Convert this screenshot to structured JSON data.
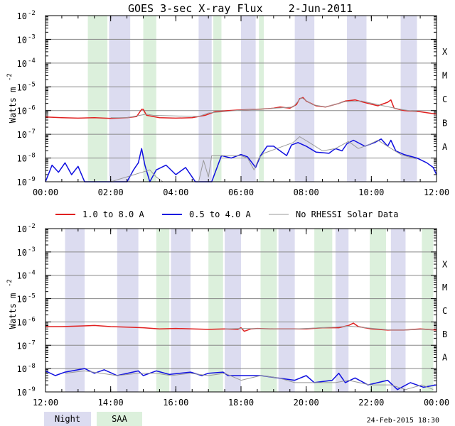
{
  "title": "GOES 3-sec X-ray Flux    2-Jun-2011",
  "ylabel": "Watts m",
  "ylabel_exp": "-2",
  "date_stamp": "24-Feb-2015 18:30",
  "colors": {
    "long": "#e02020",
    "short": "#1010e0",
    "nodata": "#999999",
    "night": "#dcdcf0",
    "saa": "#dcf0dc",
    "grid": "#888888"
  },
  "legend": {
    "items": [
      {
        "label": "1.0 to 8.0 A",
        "color": "#e02020"
      },
      {
        "label": "0.5 to 4.0 A",
        "color": "#1010e0"
      },
      {
        "label": "No RHESSI Solar Data",
        "color": "#999999"
      }
    ],
    "night_label": "Night",
    "saa_label": "SAA"
  },
  "chart_data": [
    {
      "type": "line",
      "panel": "top",
      "x_unit": "hours UT",
      "xlim": [
        0,
        12
      ],
      "x_tick_labels": [
        "00:00",
        "02:00",
        "04:00",
        "06:00",
        "08:00",
        "10:00",
        "12:00"
      ],
      "y_scale": "log",
      "ylim_exp": [
        -9,
        -2
      ],
      "y_tick_base": "10",
      "y_tick_exps": [
        "-9",
        "-8",
        "-7",
        "-6",
        "-5",
        "-4",
        "-3",
        "-2"
      ],
      "flare_classes": [
        {
          "label": "A",
          "exp": -8
        },
        {
          "label": "B",
          "exp": -7
        },
        {
          "label": "C",
          "exp": -6
        },
        {
          "label": "M",
          "exp": -5
        },
        {
          "label": "X",
          "exp": -4
        }
      ],
      "night": [
        [
          1.95,
          2.6
        ],
        [
          4.7,
          5.1
        ],
        [
          6.0,
          6.45
        ],
        [
          7.65,
          8.25
        ],
        [
          9.25,
          9.85
        ],
        [
          10.9,
          11.4
        ]
      ],
      "saa": [
        [
          1.3,
          1.9
        ],
        [
          3.0,
          3.4
        ],
        [
          5.15,
          5.4
        ],
        [
          6.55,
          6.7
        ]
      ],
      "series": [
        {
          "key": "long",
          "points": [
            [
              0.0,
              -6.27
            ],
            [
              0.5,
              -6.3
            ],
            [
              1.0,
              -6.32
            ],
            [
              1.5,
              -6.3
            ],
            [
              2.0,
              -6.33
            ],
            [
              2.5,
              -6.3
            ],
            [
              2.8,
              -6.25
            ],
            [
              2.95,
              -5.95
            ],
            [
              3.0,
              -5.95
            ],
            [
              3.1,
              -6.2
            ],
            [
              3.5,
              -6.3
            ],
            [
              4.0,
              -6.32
            ],
            [
              4.5,
              -6.3
            ],
            [
              4.9,
              -6.2
            ],
            [
              5.2,
              -6.05
            ],
            [
              5.6,
              -6.0
            ],
            [
              6.0,
              -5.97
            ],
            [
              6.5,
              -5.95
            ],
            [
              7.0,
              -5.9
            ],
            [
              7.2,
              -5.85
            ],
            [
              7.5,
              -5.9
            ],
            [
              7.7,
              -5.75
            ],
            [
              7.8,
              -5.5
            ],
            [
              7.9,
              -5.45
            ],
            [
              8.0,
              -5.6
            ],
            [
              8.3,
              -5.8
            ],
            [
              8.6,
              -5.85
            ],
            [
              9.0,
              -5.7
            ],
            [
              9.2,
              -5.6
            ],
            [
              9.5,
              -5.55
            ],
            [
              9.9,
              -5.7
            ],
            [
              10.2,
              -5.8
            ],
            [
              10.5,
              -5.65
            ],
            [
              10.6,
              -5.55
            ],
            [
              10.7,
              -5.9
            ],
            [
              11.0,
              -6.0
            ],
            [
              11.5,
              -6.05
            ],
            [
              12.0,
              -6.15
            ]
          ]
        },
        {
          "key": "short",
          "points": [
            [
              0.0,
              -9.0
            ],
            [
              0.2,
              -8.3
            ],
            [
              0.4,
              -8.6
            ],
            [
              0.6,
              -8.2
            ],
            [
              0.8,
              -8.7
            ],
            [
              1.0,
              -8.35
            ],
            [
              1.2,
              -9.0
            ],
            [
              2.5,
              -9.0
            ],
            [
              2.7,
              -8.5
            ],
            [
              2.85,
              -8.2
            ],
            [
              2.95,
              -7.6
            ],
            [
              3.05,
              -8.3
            ],
            [
              3.2,
              -9.0
            ],
            [
              3.4,
              -8.5
            ],
            [
              3.7,
              -8.3
            ],
            [
              4.0,
              -8.7
            ],
            [
              4.3,
              -8.4
            ],
            [
              4.6,
              -9.0
            ],
            [
              5.1,
              -9.0
            ],
            [
              5.4,
              -7.9
            ],
            [
              5.7,
              -8.0
            ],
            [
              6.0,
              -7.85
            ],
            [
              6.2,
              -7.95
            ],
            [
              6.45,
              -8.4
            ],
            [
              6.6,
              -7.9
            ],
            [
              6.8,
              -7.5
            ],
            [
              7.0,
              -7.5
            ],
            [
              7.2,
              -7.7
            ],
            [
              7.4,
              -7.9
            ],
            [
              7.55,
              -7.45
            ],
            [
              7.75,
              -7.35
            ],
            [
              8.0,
              -7.5
            ],
            [
              8.3,
              -7.75
            ],
            [
              8.7,
              -7.8
            ],
            [
              8.9,
              -7.6
            ],
            [
              9.1,
              -7.7
            ],
            [
              9.25,
              -7.4
            ],
            [
              9.45,
              -7.25
            ],
            [
              9.8,
              -7.5
            ],
            [
              10.1,
              -7.35
            ],
            [
              10.3,
              -7.2
            ],
            [
              10.5,
              -7.5
            ],
            [
              10.6,
              -7.25
            ],
            [
              10.75,
              -7.7
            ],
            [
              11.0,
              -7.85
            ],
            [
              11.4,
              -8.0
            ],
            [
              11.7,
              -8.2
            ],
            [
              11.9,
              -8.4
            ],
            [
              12.0,
              -8.7
            ]
          ]
        },
        {
          "key": "nodata",
          "points": [
            [
              1.3,
              -9.0
            ],
            [
              2.0,
              -9.0
            ],
            [
              3.2,
              -8.5
            ],
            [
              3.4,
              -8.8
            ],
            [
              3.6,
              -9.0
            ],
            [
              4.7,
              -9.0
            ],
            [
              4.85,
              -8.1
            ],
            [
              5.0,
              -8.8
            ],
            [
              5.1,
              -7.9
            ],
            [
              6.0,
              -7.9
            ],
            [
              6.2,
              -8.0
            ],
            [
              6.4,
              -8.5
            ],
            [
              6.55,
              -8.0
            ],
            [
              6.7,
              -7.8
            ],
            [
              7.6,
              -7.35
            ],
            [
              7.8,
              -7.1
            ],
            [
              8.1,
              -7.35
            ],
            [
              8.5,
              -7.7
            ],
            [
              8.9,
              -7.6
            ],
            [
              9.3,
              -7.3
            ],
            [
              9.6,
              -7.6
            ],
            [
              9.9,
              -7.45
            ],
            [
              10.2,
              -7.25
            ],
            [
              10.9,
              -7.85
            ],
            [
              11.4,
              -8.05
            ]
          ]
        },
        {
          "key": "nodata",
          "points": [
            [
              2.0,
              -6.3
            ],
            [
              2.5,
              -6.3
            ],
            [
              3.1,
              -6.15
            ],
            [
              3.3,
              -6.2
            ],
            [
              4.7,
              -6.25
            ],
            [
              5.0,
              -6.1
            ],
            [
              6.0,
              -5.98
            ],
            [
              6.5,
              -5.95
            ],
            [
              7.6,
              -5.85
            ],
            [
              7.85,
              -5.45
            ],
            [
              8.2,
              -5.75
            ],
            [
              8.6,
              -5.85
            ],
            [
              9.2,
              -5.62
            ],
            [
              9.7,
              -5.6
            ],
            [
              10.3,
              -5.78
            ],
            [
              10.9,
              -5.95
            ],
            [
              11.4,
              -6.05
            ]
          ]
        }
      ]
    },
    {
      "type": "line",
      "panel": "bottom",
      "x_unit": "hours UT",
      "xlim": [
        12,
        24
      ],
      "x_tick_labels": [
        "12:00",
        "14:00",
        "16:00",
        "18:00",
        "20:00",
        "22:00",
        "00:00"
      ],
      "y_scale": "log",
      "ylim_exp": [
        -9,
        -2
      ],
      "y_tick_base": "10",
      "y_tick_exps": [
        "-9",
        "-8",
        "-7",
        "-6",
        "-5",
        "-4",
        "-3",
        "-2"
      ],
      "flare_classes": [
        {
          "label": "A",
          "exp": -8
        },
        {
          "label": "B",
          "exp": -7
        },
        {
          "label": "C",
          "exp": -6
        },
        {
          "label": "M",
          "exp": -5
        },
        {
          "label": "X",
          "exp": -4
        }
      ],
      "night": [
        [
          12.6,
          13.2
        ],
        [
          14.2,
          14.85
        ],
        [
          15.85,
          16.45
        ],
        [
          17.5,
          18.0
        ],
        [
          19.15,
          19.65
        ],
        [
          20.9,
          21.3
        ],
        [
          22.6,
          23.05
        ]
      ],
      "saa": [
        [
          15.4,
          15.8
        ],
        [
          17.0,
          17.45
        ],
        [
          18.6,
          19.1
        ],
        [
          20.25,
          20.8
        ],
        [
          21.95,
          22.45
        ],
        [
          23.55,
          23.9
        ]
      ],
      "series": [
        {
          "key": "long",
          "points": [
            [
              12.0,
              -6.2
            ],
            [
              12.5,
              -6.2
            ],
            [
              13.0,
              -6.18
            ],
            [
              13.5,
              -6.15
            ],
            [
              14.0,
              -6.2
            ],
            [
              14.5,
              -6.22
            ],
            [
              15.0,
              -6.25
            ],
            [
              15.5,
              -6.3
            ],
            [
              16.0,
              -6.28
            ],
            [
              16.5,
              -6.3
            ],
            [
              17.0,
              -6.32
            ],
            [
              17.5,
              -6.3
            ],
            [
              17.9,
              -6.32
            ],
            [
              18.0,
              -6.25
            ],
            [
              18.1,
              -6.4
            ],
            [
              18.3,
              -6.3
            ],
            [
              18.5,
              -6.28
            ],
            [
              19.0,
              -6.3
            ],
            [
              19.5,
              -6.3
            ],
            [
              20.0,
              -6.3
            ],
            [
              20.5,
              -6.25
            ],
            [
              21.0,
              -6.25
            ],
            [
              21.3,
              -6.15
            ],
            [
              21.45,
              -6.05
            ],
            [
              21.6,
              -6.2
            ],
            [
              22.0,
              -6.3
            ],
            [
              22.5,
              -6.35
            ],
            [
              23.0,
              -6.35
            ],
            [
              23.5,
              -6.3
            ],
            [
              24.0,
              -6.35
            ]
          ]
        },
        {
          "key": "short",
          "points": [
            [
              12.0,
              -8.1
            ],
            [
              12.3,
              -8.3
            ],
            [
              12.6,
              -8.15
            ],
            [
              13.2,
              -8.0
            ],
            [
              13.5,
              -8.2
            ],
            [
              13.8,
              -8.05
            ],
            [
              14.2,
              -8.3
            ],
            [
              14.85,
              -8.1
            ],
            [
              15.0,
              -8.3
            ],
            [
              15.4,
              -8.1
            ],
            [
              15.8,
              -8.25
            ],
            [
              16.45,
              -8.15
            ],
            [
              16.8,
              -8.3
            ],
            [
              17.0,
              -8.2
            ],
            [
              17.45,
              -8.15
            ],
            [
              17.6,
              -8.3
            ],
            [
              18.6,
              -8.3
            ],
            [
              19.65,
              -8.5
            ],
            [
              20.0,
              -8.3
            ],
            [
              20.25,
              -8.6
            ],
            [
              20.8,
              -8.5
            ],
            [
              21.0,
              -8.2
            ],
            [
              21.2,
              -8.6
            ],
            [
              21.5,
              -8.4
            ],
            [
              21.9,
              -8.7
            ],
            [
              22.5,
              -8.5
            ],
            [
              22.8,
              -8.9
            ],
            [
              23.2,
              -8.6
            ],
            [
              23.6,
              -8.8
            ],
            [
              24.0,
              -8.7
            ]
          ]
        },
        {
          "key": "nodata",
          "points": [
            [
              12.6,
              -8.2
            ],
            [
              13.2,
              -8.1
            ],
            [
              14.2,
              -8.3
            ],
            [
              14.85,
              -8.2
            ],
            [
              15.4,
              -8.2
            ],
            [
              15.85,
              -8.3
            ],
            [
              16.45,
              -8.2
            ],
            [
              17.0,
              -8.3
            ],
            [
              17.5,
              -8.2
            ],
            [
              18.0,
              -8.5
            ],
            [
              18.6,
              -8.3
            ],
            [
              19.15,
              -8.4
            ],
            [
              19.65,
              -8.6
            ],
            [
              20.25,
              -8.6
            ],
            [
              20.9,
              -8.6
            ],
            [
              21.3,
              -8.5
            ],
            [
              21.95,
              -8.7
            ],
            [
              22.6,
              -8.7
            ],
            [
              23.05,
              -8.9
            ],
            [
              23.55,
              -8.7
            ],
            [
              23.9,
              -8.9
            ]
          ]
        },
        {
          "key": "nodata",
          "points": [
            [
              17.5,
              -6.3
            ],
            [
              18.0,
              -6.28
            ],
            [
              19.15,
              -6.3
            ],
            [
              19.65,
              -6.3
            ],
            [
              20.9,
              -6.22
            ],
            [
              21.3,
              -6.18
            ],
            [
              22.6,
              -6.35
            ],
            [
              23.05,
              -6.35
            ],
            [
              23.55,
              -6.32
            ],
            [
              23.9,
              -6.35
            ]
          ]
        }
      ]
    }
  ]
}
